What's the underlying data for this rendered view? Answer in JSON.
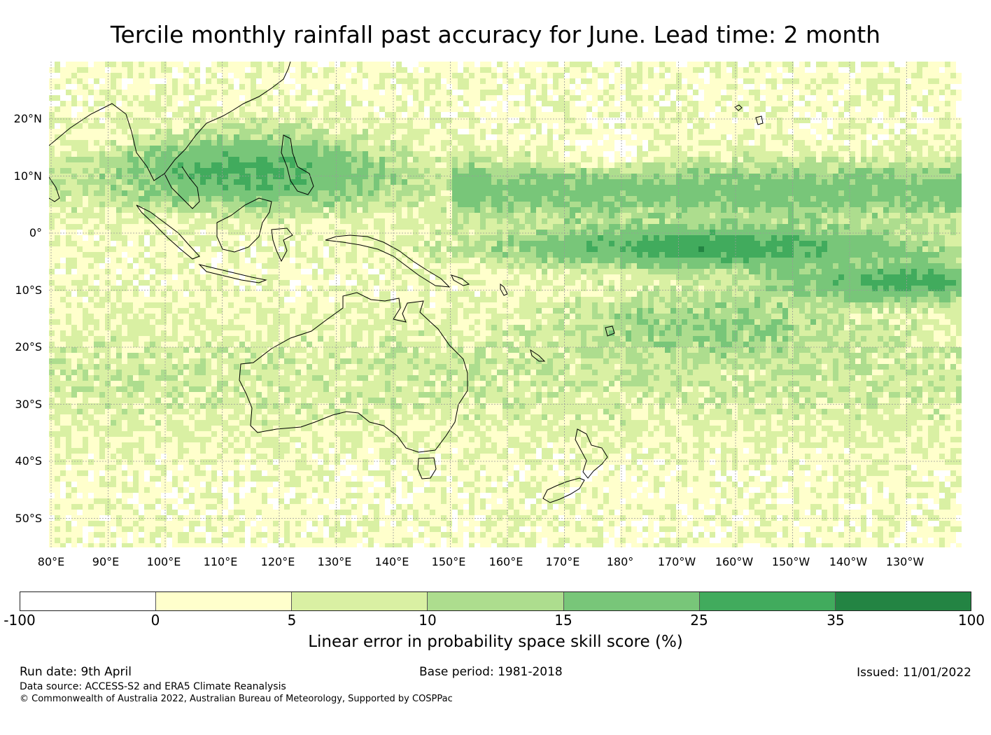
{
  "title": "Tercile monthly rainfall past accuracy for June. Lead time: 2 month",
  "map": {
    "lat_labels": [
      "20°N",
      "10°N",
      "0°",
      "10°S",
      "20°S",
      "30°S",
      "40°S",
      "50°S"
    ],
    "lon_labels": [
      "80°E",
      "90°E",
      "100°E",
      "110°E",
      "120°E",
      "130°E",
      "140°E",
      "150°E",
      "160°E",
      "170°E",
      "180°",
      "170°W",
      "160°W",
      "150°W",
      "140°W",
      "130°W"
    ],
    "colors": {
      "land_outline": "#000000",
      "grid": "#999999"
    }
  },
  "colorbar": {
    "title": "Linear error in probability space skill score (%)",
    "ticks": [
      "-100",
      "0",
      "5",
      "10",
      "15",
      "25",
      "35",
      "100"
    ],
    "colors": [
      "#ffffff",
      "#ffffcc",
      "#d9f0a3",
      "#addd8e",
      "#78c679",
      "#41ab5d",
      "#238443"
    ]
  },
  "footer": {
    "run_date": "Run date: 9th April",
    "base_period": "Base period: 1981-2018",
    "issued": "Issued: 11/01/2022",
    "data_source": "Data source: ACCESS-S2 and ERA5 Climate Reanalysis",
    "copyright": "© Commonwealth of Australia 2022, Australian Bureau of Meteorology, Supported by COSPPac"
  }
}
